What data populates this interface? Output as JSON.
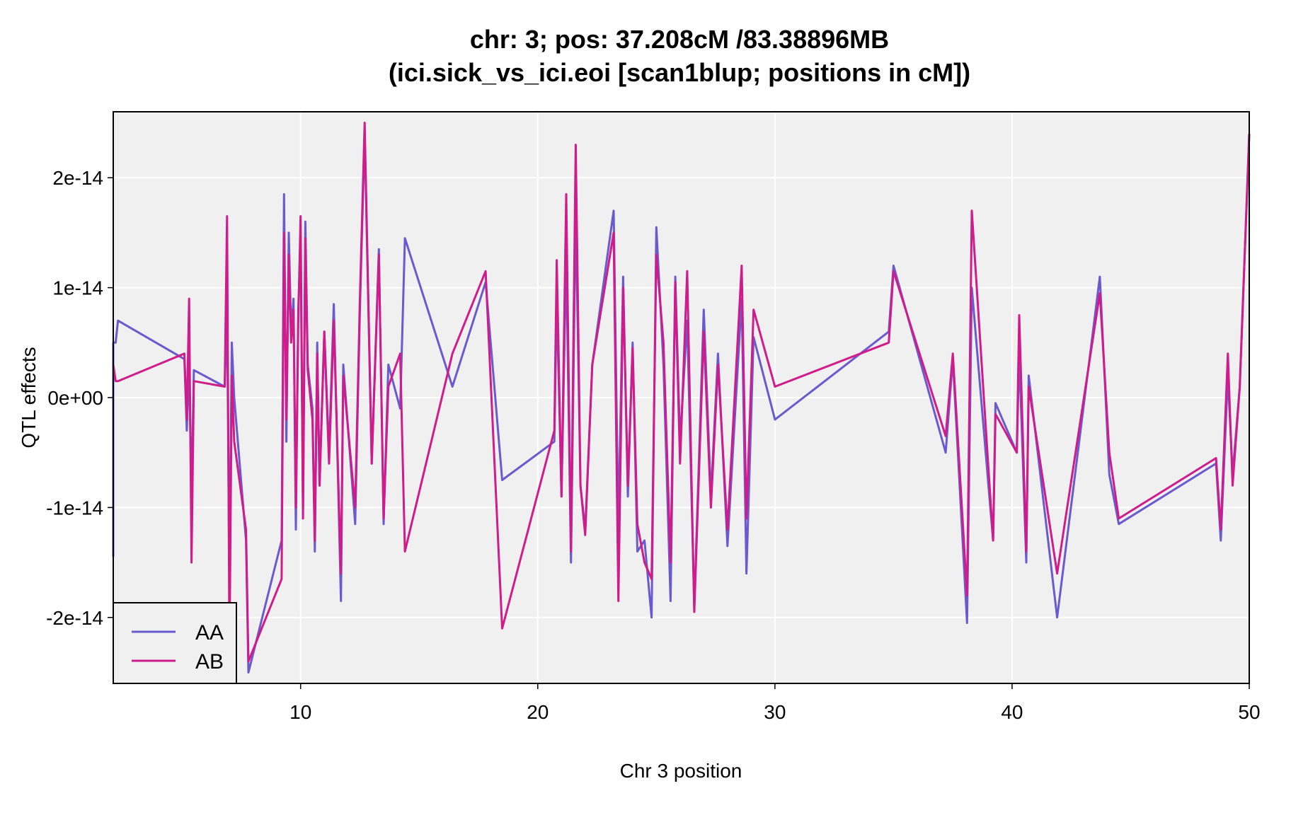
{
  "chart_data": {
    "type": "line",
    "title": "chr: 3; pos: 37.208cM /83.38896MB",
    "subtitle": "(ici.sick_vs_ici.eoi [scan1blup; positions in cM])",
    "xlabel": "Chr 3 position",
    "ylabel": "QTL effects",
    "xlim": [
      2.1,
      50
    ],
    "ylim": [
      -2.6e-14,
      2.6e-14
    ],
    "x_ticks": [
      10,
      20,
      30,
      40,
      50
    ],
    "x_tick_labels": [
      "10",
      "20",
      "30",
      "40",
      "50"
    ],
    "y_ticks": [
      -2e-14,
      -1e-14,
      0,
      1e-14,
      2e-14
    ],
    "y_tick_labels": [
      "-2e-14",
      "-1e-14",
      "0e+00",
      "1e-14",
      "2e-14"
    ],
    "grid": true,
    "background": "#f0f0f0",
    "legend_position": "bottom-left",
    "series": [
      {
        "name": "AA",
        "color": "#6a5acd",
        "x": [
          2.1,
          2.1,
          2.2,
          2.3,
          5.1,
          5.2,
          5.3,
          5.4,
          5.5,
          6.8,
          6.9,
          7.0,
          7.1,
          7.2,
          7.7,
          7.8,
          9.2,
          9.3,
          9.4,
          9.5,
          9.6,
          9.7,
          9.8,
          9.9,
          10.0,
          10.1,
          10.2,
          10.3,
          10.5,
          10.6,
          10.7,
          10.8,
          11.0,
          11.2,
          11.4,
          11.7,
          11.8,
          12.3,
          12.5,
          12.7,
          13.0,
          13.3,
          13.5,
          13.7,
          14.2,
          14.4,
          16.4,
          17.8,
          18.5,
          20.7,
          20.8,
          21.0,
          21.2,
          21.4,
          21.6,
          21.8,
          22.0,
          22.3,
          23.2,
          23.4,
          23.6,
          23.8,
          24.0,
          24.2,
          24.5,
          24.8,
          25.0,
          25.3,
          25.6,
          25.8,
          26.0,
          26.3,
          26.6,
          27.0,
          27.3,
          27.6,
          28.0,
          28.6,
          28.8,
          29.1,
          30.0,
          34.8,
          35.0,
          37.2,
          37.5,
          38.1,
          38.3,
          39.2,
          39.3,
          40.2,
          40.3,
          40.6,
          40.7,
          41.9,
          43.7,
          44.1,
          44.5,
          48.6,
          48.8,
          49.1,
          49.3,
          49.6,
          50.0
        ],
        "values": [
          -1.45e-14,
          5e-15,
          5e-15,
          7e-15,
          3.5e-15,
          -3e-15,
          3e-15,
          -9e-15,
          2.5e-15,
          1e-15,
          8e-15,
          -1.7e-14,
          5e-15,
          0.0,
          -1.3e-14,
          -2.5e-14,
          -1.3e-14,
          1.85e-14,
          -4e-15,
          1.5e-14,
          6e-15,
          9e-15,
          -1.2e-14,
          8e-15,
          1.4e-14,
          -1e-14,
          1.6e-14,
          3e-15,
          -1e-15,
          -1.4e-14,
          5e-15,
          -8e-15,
          6e-15,
          -5e-15,
          8.5e-15,
          -1.85e-14,
          3e-15,
          -1.15e-14,
          8e-15,
          2.4e-14,
          -6e-15,
          1.35e-14,
          -1.15e-14,
          3e-15,
          -1e-15,
          1.45e-14,
          1e-15,
          1.05e-14,
          -7.5e-15,
          -4e-15,
          9e-15,
          -9e-15,
          1.3e-14,
          -1.5e-14,
          1.7e-14,
          -8e-15,
          -1.2e-14,
          3e-15,
          1.7e-14,
          -1.2e-14,
          1.1e-14,
          -9e-15,
          5e-15,
          -1.4e-14,
          -1.3e-14,
          -2e-14,
          1.55e-14,
          3e-15,
          -1.85e-14,
          1.1e-14,
          -4e-15,
          7e-15,
          -1.9e-14,
          8e-15,
          -9e-15,
          4e-15,
          -1.35e-14,
          9e-15,
          -1.6e-14,
          5.5e-15,
          -2e-15,
          6e-15,
          1.2e-14,
          -5e-15,
          3.5e-15,
          -2.05e-14,
          1e-14,
          -1.3e-14,
          -5e-16,
          -5e-15,
          4e-15,
          -1.5e-14,
          2e-15,
          -2e-14,
          1.1e-14,
          -7e-15,
          -1.15e-14,
          -6e-15,
          -1.3e-14,
          2e-15,
          -7e-15,
          1e-15,
          2.4e-14
        ]
      },
      {
        "name": "AB",
        "color": "#d01c8b",
        "x": [
          2.1,
          2.2,
          2.3,
          5.1,
          5.2,
          5.3,
          5.4,
          5.5,
          6.8,
          6.9,
          7.0,
          7.1,
          7.2,
          7.7,
          7.8,
          9.2,
          9.3,
          9.4,
          9.5,
          9.6,
          9.7,
          9.8,
          9.9,
          10.0,
          10.1,
          10.2,
          10.3,
          10.5,
          10.6,
          10.7,
          10.8,
          11.0,
          11.2,
          11.4,
          11.7,
          11.8,
          12.3,
          12.5,
          12.7,
          13.0,
          13.3,
          13.5,
          13.7,
          14.2,
          14.4,
          16.4,
          17.8,
          18.5,
          20.7,
          20.8,
          21.0,
          21.2,
          21.4,
          21.6,
          21.8,
          22.0,
          22.3,
          23.2,
          23.4,
          23.6,
          23.8,
          24.0,
          24.2,
          24.5,
          24.8,
          25.0,
          25.3,
          25.6,
          25.8,
          26.0,
          26.3,
          26.6,
          27.0,
          27.3,
          27.6,
          28.0,
          28.6,
          28.8,
          29.1,
          30.0,
          34.8,
          35.0,
          37.2,
          37.5,
          38.1,
          38.3,
          39.2,
          39.3,
          40.2,
          40.3,
          40.6,
          40.7,
          41.9,
          43.7,
          44.1,
          44.5,
          48.6,
          48.8,
          49.1,
          49.3,
          49.6,
          50.0
        ],
        "values": [
          3e-15,
          1.5e-15,
          1.5e-15,
          4e-15,
          -2e-15,
          9e-15,
          -1.5e-14,
          1.5e-15,
          1e-15,
          1.65e-14,
          -2.3e-14,
          2e-15,
          -4e-15,
          -1.2e-14,
          -2.4e-14,
          -1.65e-14,
          1.5e-14,
          -2e-15,
          1.3e-14,
          5e-15,
          8e-15,
          -1e-14,
          7e-15,
          1.65e-14,
          -1.1e-14,
          1.45e-14,
          2.5e-15,
          -2e-15,
          -1.3e-14,
          4e-15,
          -8e-15,
          6e-15,
          -6e-15,
          7e-15,
          -1.6e-14,
          2e-15,
          -1e-14,
          9e-15,
          2.5e-14,
          -6e-15,
          1.3e-14,
          -1.1e-14,
          1e-15,
          4e-15,
          -1.4e-14,
          4e-15,
          1.15e-14,
          -2.1e-14,
          -3e-15,
          1.25e-14,
          -9e-15,
          1.85e-14,
          -1.4e-14,
          2.3e-14,
          -8e-15,
          -1.25e-14,
          3e-15,
          1.5e-14,
          -1.85e-14,
          1e-14,
          -8e-15,
          4.5e-15,
          -1.15e-14,
          -1.5e-14,
          -1.65e-14,
          1.3e-14,
          5e-15,
          -1.5e-14,
          1.05e-14,
          -6e-15,
          1.15e-14,
          -1.95e-14,
          6e-15,
          -1e-14,
          3e-15,
          -1.2e-14,
          1.2e-14,
          -1.1e-14,
          8e-15,
          1e-15,
          5e-15,
          1.15e-14,
          -3.5e-15,
          4e-15,
          -1.8e-14,
          1.7e-14,
          -1.3e-14,
          -1.5e-15,
          -5e-15,
          7.5e-15,
          -1.4e-14,
          1e-15,
          -1.6e-14,
          9.5e-15,
          -5e-15,
          -1.1e-14,
          -5.5e-15,
          -1.2e-14,
          4e-15,
          -8e-15,
          1e-15,
          2.4e-14
        ]
      }
    ]
  }
}
